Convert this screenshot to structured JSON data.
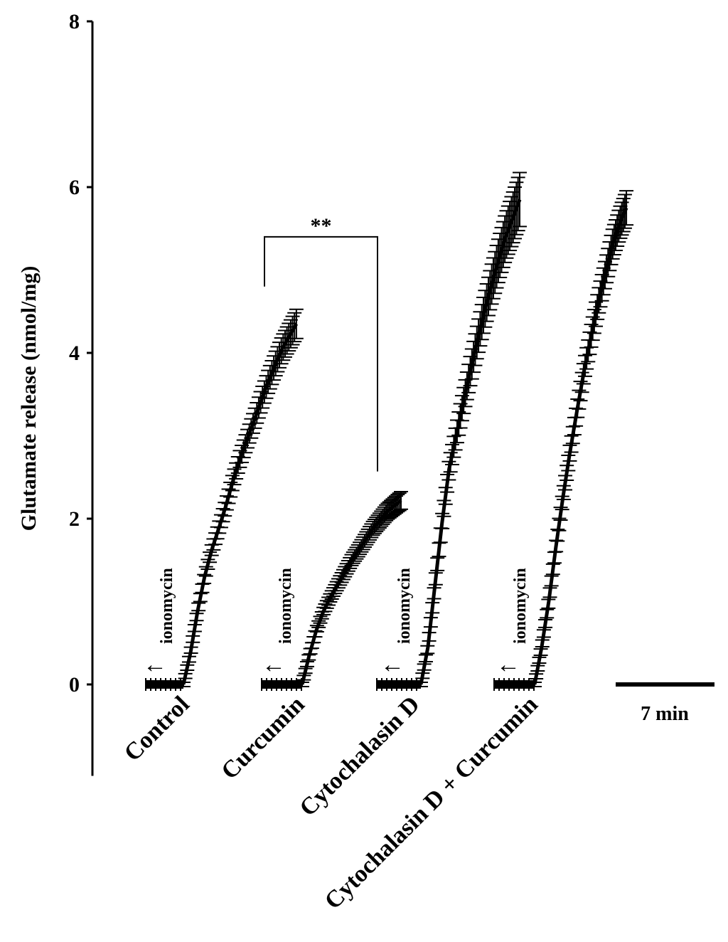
{
  "chart_data": {
    "type": "line",
    "title": "",
    "ylabel": "Glutamate release (nmol/mg)",
    "xlabel": "",
    "ylim": [
      -1,
      8
    ],
    "yticks": [
      0,
      2,
      4,
      6,
      8
    ],
    "grid": false,
    "legend": "none",
    "scale_bar": {
      "label": "7 min",
      "minutes": 7
    },
    "stimulus_label": "ionomycin",
    "significance": {
      "label": "**",
      "between": [
        "Curcumin",
        "Control"
      ]
    },
    "series": [
      {
        "name": "Control",
        "baseline": 0,
        "plateau_end": 4.35,
        "points": [
          [
            0,
            0
          ],
          [
            0.5,
            0.38
          ],
          [
            1,
            0.88
          ],
          [
            1.5,
            1.3
          ],
          [
            2,
            1.62
          ],
          [
            2.5,
            1.88
          ],
          [
            3,
            2.15
          ],
          [
            3.5,
            2.45
          ],
          [
            4,
            2.72
          ],
          [
            4.5,
            2.95
          ],
          [
            5,
            3.18
          ],
          [
            5.5,
            3.42
          ],
          [
            6,
            3.65
          ],
          [
            6.5,
            3.86
          ],
          [
            7,
            4.05
          ],
          [
            7.5,
            4.2
          ],
          [
            8,
            4.35
          ]
        ],
        "error": 0.15
      },
      {
        "name": "Curcumin",
        "baseline": 0,
        "points": [
          [
            0,
            0
          ],
          [
            0.5,
            0.35
          ],
          [
            1,
            0.65
          ],
          [
            1.5,
            0.88
          ],
          [
            2,
            1.05
          ],
          [
            2.5,
            1.2
          ],
          [
            3,
            1.35
          ],
          [
            3.5,
            1.5
          ],
          [
            4,
            1.62
          ],
          [
            4.5,
            1.75
          ],
          [
            5,
            1.88
          ],
          [
            5.5,
            1.98
          ],
          [
            6,
            2.08
          ],
          [
            6.5,
            2.15
          ],
          [
            7,
            2.22
          ]
        ],
        "error": 0.08
      },
      {
        "name": "Cytochalasin D",
        "baseline": 0,
        "points": [
          [
            0,
            0
          ],
          [
            0.5,
            0.45
          ],
          [
            1,
            1.2
          ],
          [
            1.5,
            1.95
          ],
          [
            2,
            2.6
          ],
          [
            2.5,
            3.0
          ],
          [
            3,
            3.4
          ],
          [
            3.5,
            3.78
          ],
          [
            4,
            4.15
          ],
          [
            4.5,
            4.5
          ],
          [
            5,
            4.82
          ],
          [
            5.5,
            5.12
          ],
          [
            6,
            5.4
          ],
          [
            6.5,
            5.62
          ],
          [
            7,
            5.85
          ]
        ],
        "error": 0.3
      },
      {
        "name": "Cytochalasin D + Curcumin",
        "baseline": 0,
        "points": [
          [
            0,
            0
          ],
          [
            0.5,
            0.45
          ],
          [
            1,
            1.0
          ],
          [
            1.5,
            1.65
          ],
          [
            2,
            2.25
          ],
          [
            2.5,
            2.8
          ],
          [
            3,
            3.3
          ],
          [
            3.5,
            3.78
          ],
          [
            4,
            4.2
          ],
          [
            4.5,
            4.6
          ],
          [
            5,
            4.95
          ],
          [
            5.5,
            5.3
          ],
          [
            6,
            5.55
          ],
          [
            6.5,
            5.75
          ]
        ],
        "error": 0.18
      }
    ]
  }
}
